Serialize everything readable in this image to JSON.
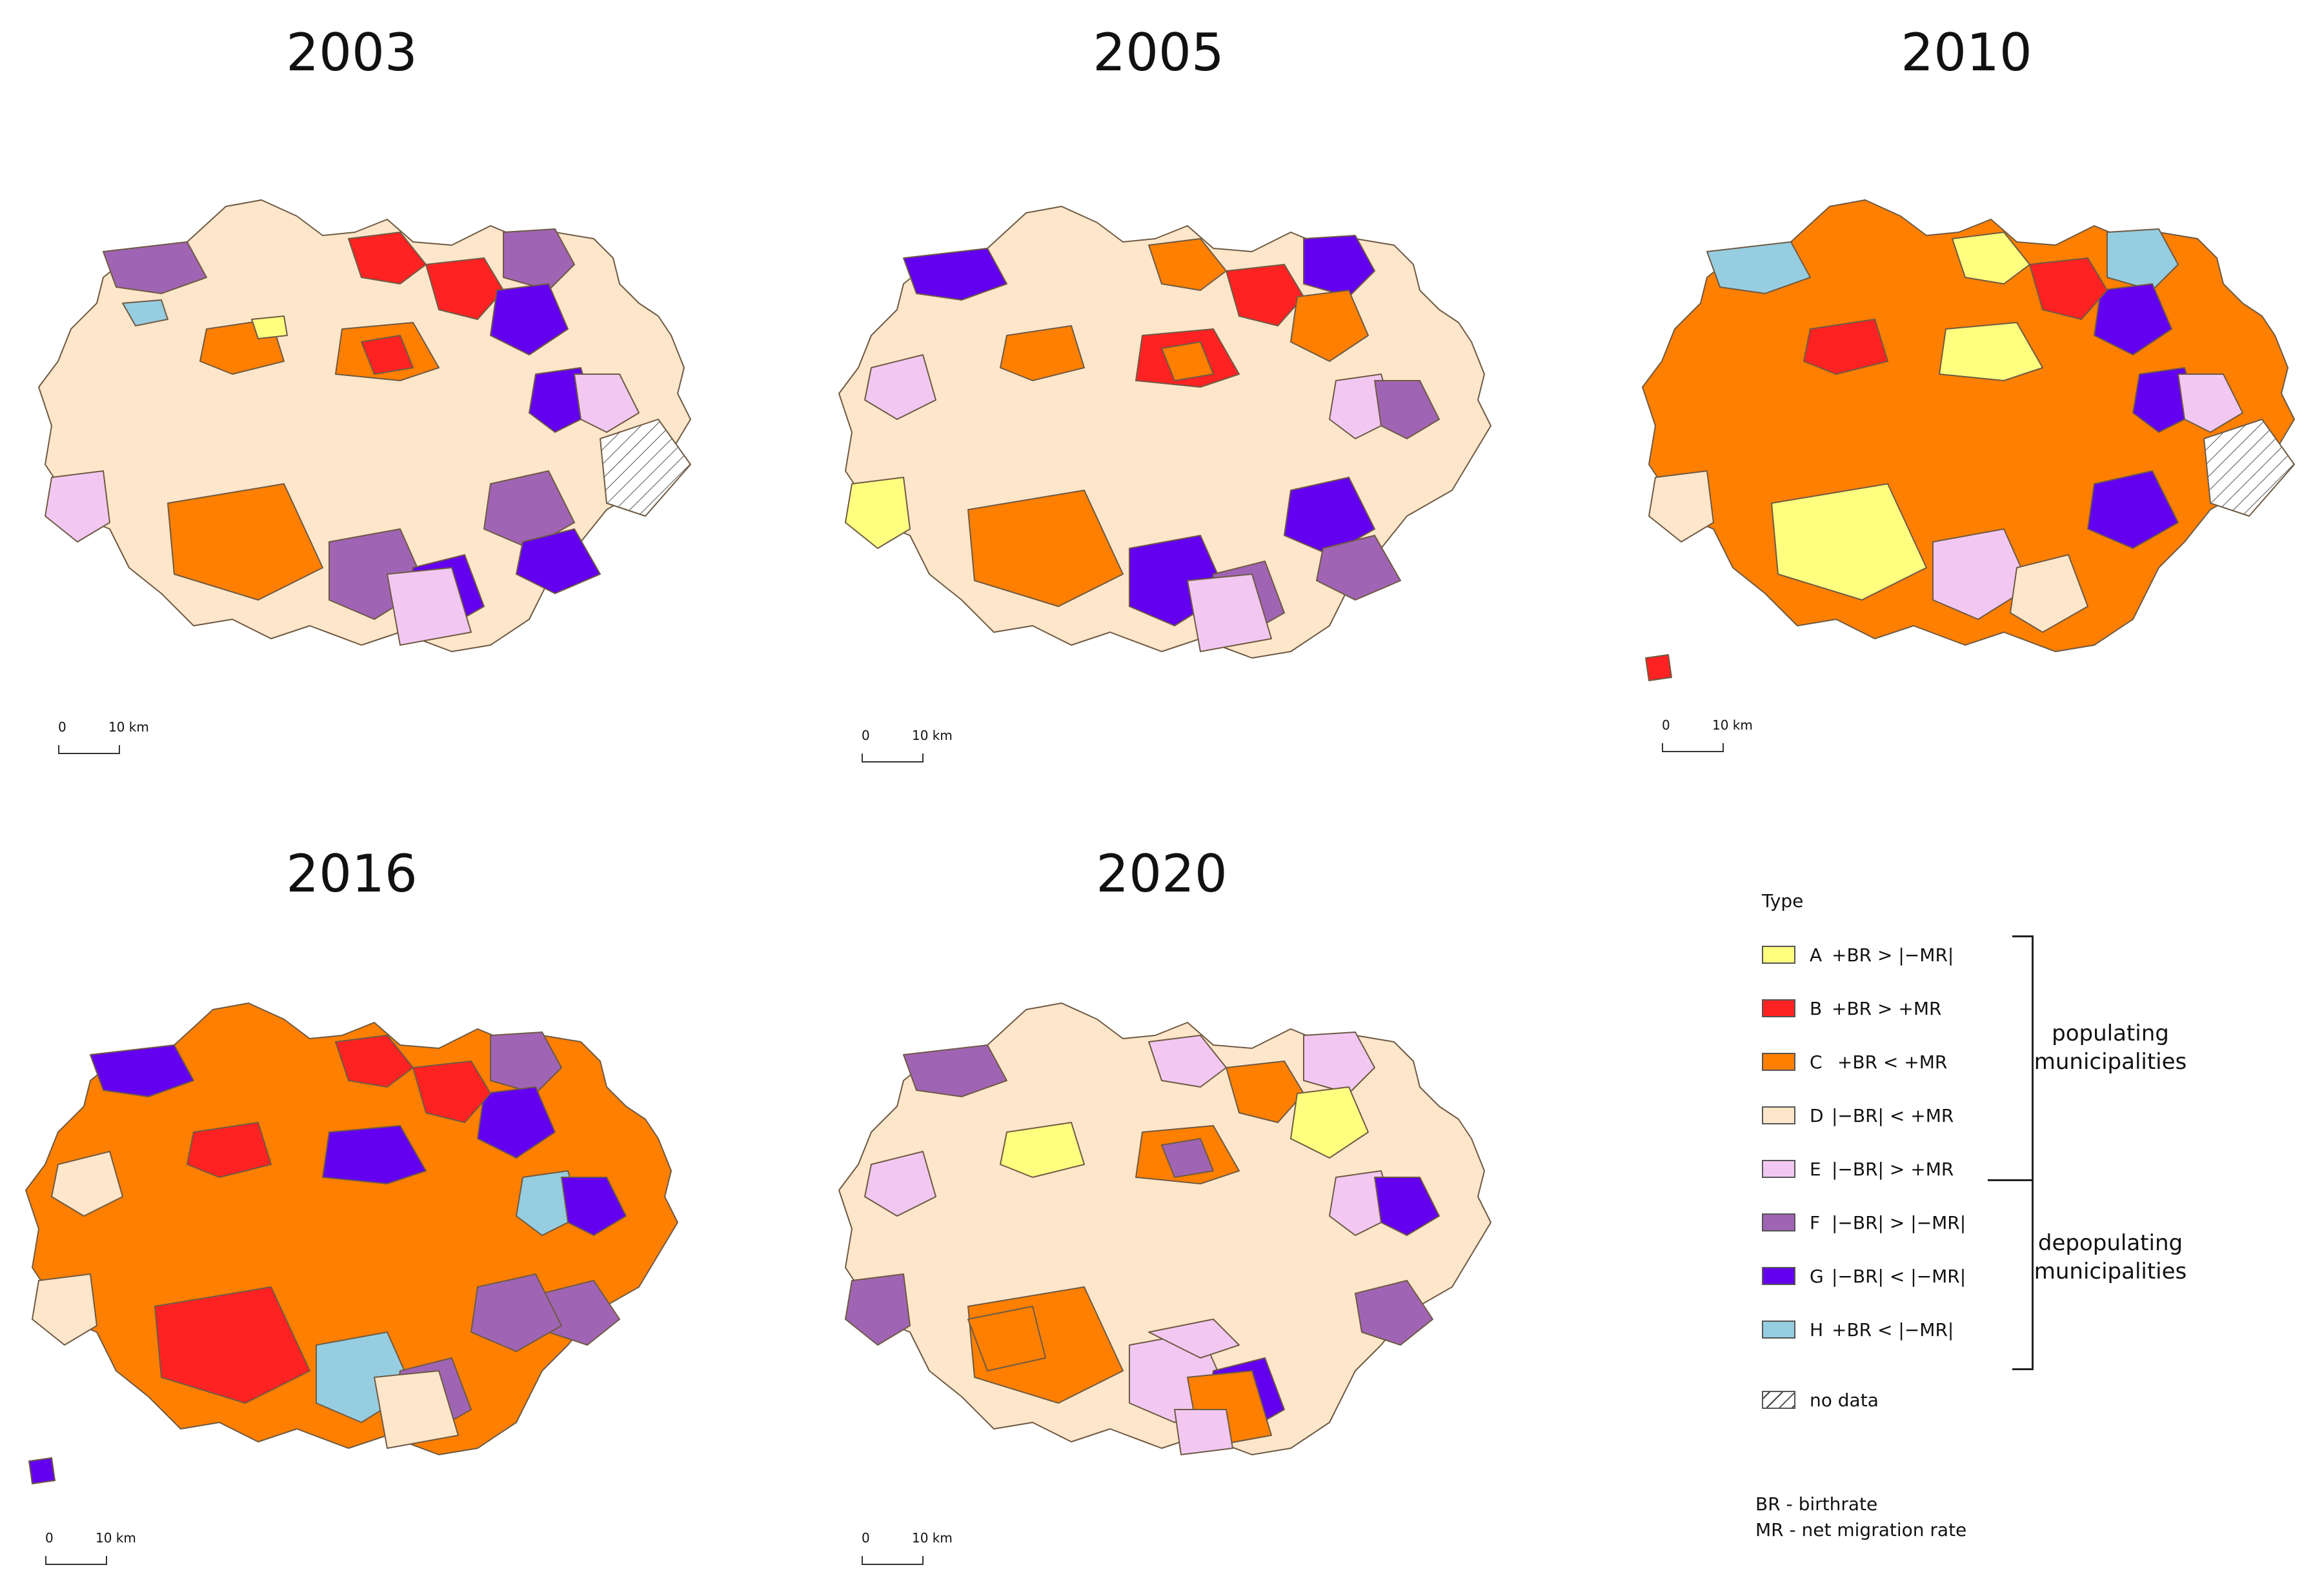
{
  "colors": {
    "A": "#ffff7f",
    "B": "#ff2222",
    "C": "#ff7f00",
    "D": "#fde6c9",
    "E": "#f2c8f2",
    "F": "#a064b4",
    "G": "#6400f0",
    "H": "#96cde0"
  },
  "panels": [
    {
      "year": "2003",
      "scale": {
        "zero": "0",
        "dist": "10 km"
      }
    },
    {
      "year": "2005",
      "scale": {
        "zero": "0",
        "dist": "10 km"
      }
    },
    {
      "year": "2010",
      "scale": {
        "zero": "0",
        "dist": "10 km"
      }
    },
    {
      "year": "2016",
      "scale": {
        "zero": "0",
        "dist": "10 km"
      }
    },
    {
      "year": "2020",
      "scale": {
        "zero": "0",
        "dist": "10 km"
      }
    }
  ],
  "legend": {
    "title": "Type",
    "items": [
      {
        "code": "A",
        "condition": "+BR > |−MR|",
        "color_key": "A"
      },
      {
        "code": "B",
        "condition": "+BR > +MR",
        "color_key": "B"
      },
      {
        "code": "C",
        "condition": " +BR < +MR",
        "color_key": "C"
      },
      {
        "code": "D",
        "condition": "|−BR| < +MR",
        "color_key": "D"
      },
      {
        "code": "E",
        "condition": "|−BR| > +MR",
        "color_key": "E"
      },
      {
        "code": "F",
        "condition": "|−BR| > |−MR|",
        "color_key": "F"
      },
      {
        "code": "G",
        "condition": "|−BR| < |−MR|",
        "color_key": "G"
      },
      {
        "code": "H",
        "condition": "+BR < |−MR|",
        "color_key": "H"
      }
    ],
    "no_data": "no data",
    "groups": {
      "populating": "populating municipalities",
      "depopulating": "depopulating municipalities"
    },
    "notes": [
      "BR - birthrate",
      "MR - net migration rate"
    ]
  },
  "maps": [
    {
      "year": "2003",
      "base": "D",
      "regions": [
        {
          "id": "nw",
          "type": "F"
        },
        {
          "id": "n1",
          "type": "B"
        },
        {
          "id": "n2",
          "type": "B"
        },
        {
          "id": "ne1",
          "type": "F"
        },
        {
          "id": "ne2",
          "type": "G"
        },
        {
          "id": "c1",
          "type": "C"
        },
        {
          "id": "c2",
          "type": "C"
        },
        {
          "id": "c3",
          "type": "B"
        },
        {
          "id": "e1",
          "type": "G"
        },
        {
          "id": "e2",
          "type": "E"
        },
        {
          "id": "s1",
          "type": "C"
        },
        {
          "id": "s2",
          "type": "F"
        },
        {
          "id": "s3",
          "type": "G"
        },
        {
          "id": "s4",
          "type": "E"
        },
        {
          "id": "se1",
          "type": "F"
        },
        {
          "id": "se2",
          "type": "G"
        },
        {
          "id": "w1",
          "type": "E"
        },
        {
          "id": "nw2",
          "type": "H"
        },
        {
          "id": "n3",
          "type": "A"
        },
        {
          "id": "nd",
          "type": "nodata"
        }
      ]
    },
    {
      "year": "2005",
      "base": "D",
      "regions": [
        {
          "id": "nw",
          "type": "G"
        },
        {
          "id": "w1",
          "type": "A"
        },
        {
          "id": "n1",
          "type": "C"
        },
        {
          "id": "n2",
          "type": "B"
        },
        {
          "id": "c1",
          "type": "C"
        },
        {
          "id": "c2",
          "type": "B"
        },
        {
          "id": "ne1",
          "type": "G"
        },
        {
          "id": "ne2",
          "type": "C"
        },
        {
          "id": "e1",
          "type": "E"
        },
        {
          "id": "e2",
          "type": "F"
        },
        {
          "id": "s1",
          "type": "C"
        },
        {
          "id": "s2",
          "type": "G"
        },
        {
          "id": "s3",
          "type": "F"
        },
        {
          "id": "s4",
          "type": "E"
        },
        {
          "id": "se1",
          "type": "G"
        },
        {
          "id": "se2",
          "type": "F"
        },
        {
          "id": "w2",
          "type": "E"
        },
        {
          "id": "c3",
          "type": "C"
        }
      ]
    },
    {
      "year": "2010",
      "base": "C",
      "regions": [
        {
          "id": "n1",
          "type": "A"
        },
        {
          "id": "nw",
          "type": "H"
        },
        {
          "id": "ne1",
          "type": "H"
        },
        {
          "id": "ne2",
          "type": "G"
        },
        {
          "id": "n2",
          "type": "B"
        },
        {
          "id": "c1",
          "type": "B"
        },
        {
          "id": "c2",
          "type": "A"
        },
        {
          "id": "e1",
          "type": "G"
        },
        {
          "id": "e2",
          "type": "E"
        },
        {
          "id": "s1",
          "type": "A"
        },
        {
          "id": "s2",
          "type": "E"
        },
        {
          "id": "se1",
          "type": "G"
        },
        {
          "id": "w1",
          "type": "D"
        },
        {
          "id": "sw",
          "type": "B"
        },
        {
          "id": "s3",
          "type": "D"
        },
        {
          "id": "nd",
          "type": "nodata"
        }
      ]
    },
    {
      "year": "2016",
      "base": "C",
      "regions": [
        {
          "id": "n1",
          "type": "B"
        },
        {
          "id": "nw",
          "type": "G"
        },
        {
          "id": "ne1",
          "type": "F"
        },
        {
          "id": "ne2",
          "type": "G"
        },
        {
          "id": "n2",
          "type": "B"
        },
        {
          "id": "e1",
          "type": "H"
        },
        {
          "id": "e2",
          "type": "G"
        },
        {
          "id": "e3",
          "type": "F"
        },
        {
          "id": "s1",
          "type": "B"
        },
        {
          "id": "s2",
          "type": "H"
        },
        {
          "id": "s3",
          "type": "F"
        },
        {
          "id": "se1",
          "type": "F"
        },
        {
          "id": "c1",
          "type": "B"
        },
        {
          "id": "w1",
          "type": "D"
        },
        {
          "id": "w2",
          "type": "D"
        },
        {
          "id": "sw",
          "type": "G"
        },
        {
          "id": "s4",
          "type": "D"
        },
        {
          "id": "c2",
          "type": "G"
        }
      ]
    },
    {
      "year": "2020",
      "base": "D",
      "regions": [
        {
          "id": "n1",
          "type": "E"
        },
        {
          "id": "nw",
          "type": "F"
        },
        {
          "id": "w1",
          "type": "F"
        },
        {
          "id": "w2",
          "type": "E"
        },
        {
          "id": "n2",
          "type": "C"
        },
        {
          "id": "ne1",
          "type": "E"
        },
        {
          "id": "ne2",
          "type": "A"
        },
        {
          "id": "c1",
          "type": "A"
        },
        {
          "id": "c2",
          "type": "C"
        },
        {
          "id": "c3",
          "type": "F"
        },
        {
          "id": "e1",
          "type": "E"
        },
        {
          "id": "e2",
          "type": "G"
        },
        {
          "id": "e3",
          "type": "F"
        },
        {
          "id": "s1",
          "type": "C"
        },
        {
          "id": "s2",
          "type": "E"
        },
        {
          "id": "s3",
          "type": "G"
        },
        {
          "id": "s4",
          "type": "C"
        },
        {
          "id": "s5",
          "type": "E"
        },
        {
          "id": "w3",
          "type": "C"
        },
        {
          "id": "c4",
          "type": "E"
        }
      ]
    }
  ]
}
